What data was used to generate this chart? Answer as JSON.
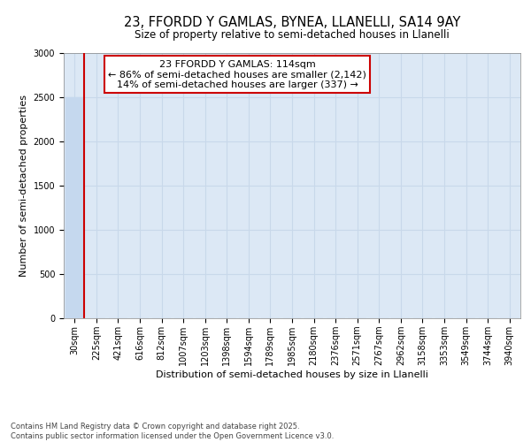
{
  "title_line1": "23, FFORDD Y GAMLAS, BYNEA, LLANELLI, SA14 9AY",
  "title_line2": "Size of property relative to semi-detached houses in Llanelli",
  "xlabel": "Distribution of semi-detached houses by size in Llanelli",
  "ylabel": "Number of semi-detached properties",
  "categories": [
    "30sqm",
    "225sqm",
    "421sqm",
    "616sqm",
    "812sqm",
    "1007sqm",
    "1203sqm",
    "1398sqm",
    "1594sqm",
    "1789sqm",
    "1985sqm",
    "2180sqm",
    "2376sqm",
    "2571sqm",
    "2767sqm",
    "2962sqm",
    "3158sqm",
    "3353sqm",
    "3549sqm",
    "3744sqm",
    "3940sqm"
  ],
  "values": [
    2500,
    0,
    0,
    0,
    0,
    0,
    0,
    0,
    0,
    0,
    0,
    0,
    0,
    0,
    0,
    0,
    0,
    0,
    0,
    0,
    0
  ],
  "bar_color": "#c5d8ee",
  "bar_edge_color": "#c5d8ee",
  "grid_color": "#c8d8ea",
  "background_color": "#dce8f5",
  "annotation_line1": "23 FFORDD Y GAMLAS: 114sqm",
  "annotation_line2": "← 86% of semi-detached houses are smaller (2,142)",
  "annotation_line3": "14% of semi-detached houses are larger (337) →",
  "vline_x_index": 0.42,
  "vline_color": "#cc0000",
  "ylim": [
    0,
    3000
  ],
  "yticks": [
    0,
    500,
    1000,
    1500,
    2000,
    2500,
    3000
  ],
  "footer_text": "Contains HM Land Registry data © Crown copyright and database right 2025.\nContains public sector information licensed under the Open Government Licence v3.0.",
  "annotation_box_color": "#cc0000",
  "title_fontsize": 10.5,
  "subtitle_fontsize": 8.5,
  "ylabel_fontsize": 8,
  "xlabel_fontsize": 8,
  "tick_fontsize": 7,
  "annot_fontsize": 8,
  "footer_fontsize": 6
}
